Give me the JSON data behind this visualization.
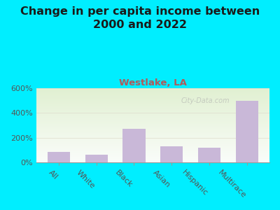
{
  "title": "Change in per capita income between\n2000 and 2022",
  "subtitle": "Westlake, LA",
  "categories": [
    "All",
    "White",
    "Black",
    "Asian",
    "Hispanic",
    "Multirace"
  ],
  "values": [
    85,
    65,
    270,
    130,
    120,
    495
  ],
  "bar_color": "#c9b8d8",
  "title_fontsize": 11.5,
  "subtitle_fontsize": 9.5,
  "subtitle_color": "#b05a5a",
  "background_outer": "#00eeff",
  "ylim": [
    0,
    600
  ],
  "yticks": [
    0,
    200,
    400,
    600
  ],
  "watermark": "City-Data.com",
  "xlabel_rotation": -45,
  "title_color": "#1a1a1a"
}
